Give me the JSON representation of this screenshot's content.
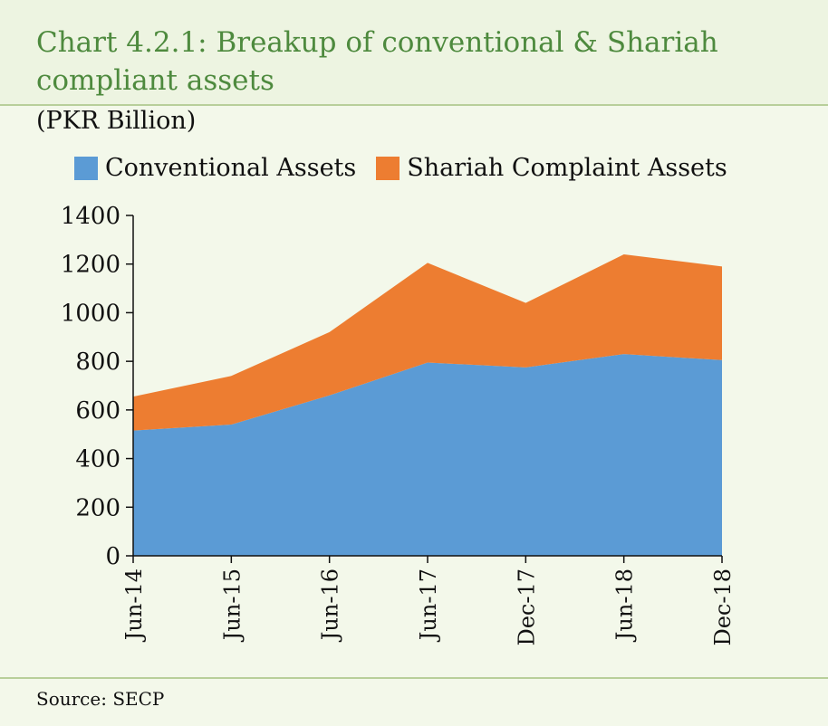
{
  "title": "Chart 4.2.1: Breakup of conventional & Shariah compliant assets",
  "unit_label": "(PKR Billion)",
  "source": "Source:  SECP",
  "chart_data": {
    "type": "area",
    "stacked": true,
    "categories": [
      "Jun-14",
      "Jun-15",
      "Jun-16",
      "Jun-17",
      "Dec-17",
      "Jun-18",
      "Dec-18"
    ],
    "series": [
      {
        "name": "Conventional Assets",
        "color": "#5b9bd5",
        "values": [
          515,
          540,
          660,
          795,
          775,
          830,
          805
        ]
      },
      {
        "name": "Shariah Complaint Assets",
        "color": "#ed7d31",
        "values": [
          140,
          200,
          260,
          410,
          265,
          410,
          385
        ]
      }
    ],
    "ylim": [
      0,
      1400
    ],
    "yticks": [
      0,
      200,
      400,
      600,
      800,
      1000,
      1200,
      1400
    ],
    "grid": false,
    "legend_position": "top"
  }
}
